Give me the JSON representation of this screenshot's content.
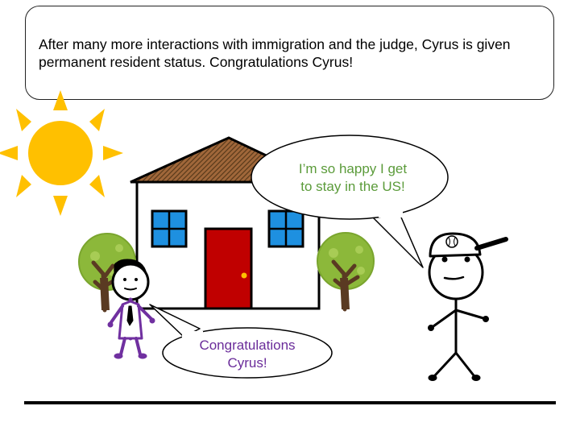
{
  "narration": {
    "text": "After many more interactions with immigration and the judge, Cyrus is given permanent resident status. Congratulations Cyrus!"
  },
  "bubbles": {
    "cyrus": {
      "line1": "I’m so happy I get",
      "line2": "to stay in the US!",
      "color": "#5b9b3a"
    },
    "woman": {
      "line1": "Congratulations",
      "line2": "Cyrus!",
      "color": "#6a2c9a"
    }
  },
  "colors": {
    "sun": "#ffc000",
    "door": "#c00000",
    "window": "#1e90e0",
    "roof": "#8b5a2b",
    "tree": "#8cb83a",
    "trunk": "#5a3a22",
    "woman": "#7030a0"
  }
}
